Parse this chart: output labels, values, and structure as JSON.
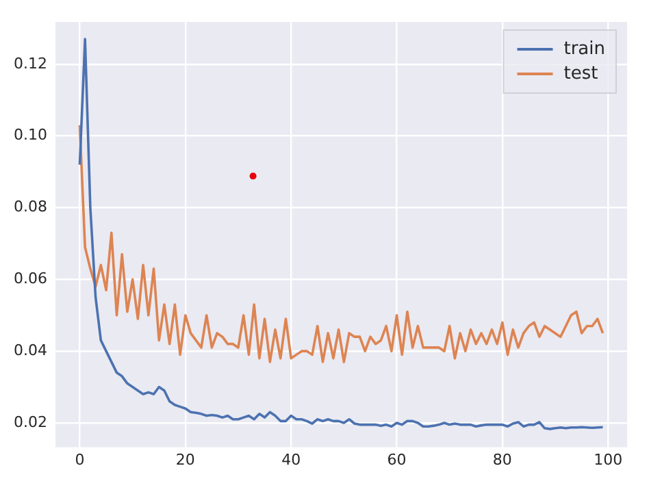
{
  "chart_data": {
    "type": "line",
    "x": [
      0,
      1,
      2,
      3,
      4,
      5,
      6,
      7,
      8,
      9,
      10,
      11,
      12,
      13,
      14,
      15,
      16,
      17,
      18,
      19,
      20,
      21,
      22,
      23,
      24,
      25,
      26,
      27,
      28,
      29,
      30,
      31,
      32,
      33,
      34,
      35,
      36,
      37,
      38,
      39,
      40,
      41,
      42,
      43,
      44,
      45,
      46,
      47,
      48,
      49,
      50,
      51,
      52,
      53,
      54,
      55,
      56,
      57,
      58,
      59,
      60,
      61,
      62,
      63,
      64,
      65,
      66,
      67,
      68,
      69,
      70,
      71,
      72,
      73,
      74,
      75,
      76,
      77,
      78,
      79,
      80,
      81,
      82,
      83,
      84,
      85,
      86,
      87,
      88,
      89,
      90,
      91,
      92,
      93,
      94,
      95,
      96,
      97,
      98,
      99
    ],
    "series": [
      {
        "name": "train",
        "color": "#4c72b0",
        "values": [
          0.092,
          0.127,
          0.08,
          0.055,
          0.043,
          0.04,
          0.037,
          0.034,
          0.033,
          0.031,
          0.03,
          0.029,
          0.028,
          0.0285,
          0.028,
          0.03,
          0.029,
          0.026,
          0.025,
          0.0245,
          0.024,
          0.023,
          0.0228,
          0.0225,
          0.022,
          0.0222,
          0.022,
          0.0215,
          0.022,
          0.021,
          0.021,
          0.0215,
          0.022,
          0.021,
          0.0225,
          0.0215,
          0.023,
          0.022,
          0.0205,
          0.0205,
          0.022,
          0.021,
          0.021,
          0.0205,
          0.0198,
          0.021,
          0.0205,
          0.021,
          0.0205,
          0.0205,
          0.02,
          0.021,
          0.0198,
          0.0195,
          0.0195,
          0.0195,
          0.0195,
          0.0192,
          0.0195,
          0.019,
          0.02,
          0.0195,
          0.0205,
          0.0205,
          0.02,
          0.019,
          0.019,
          0.0192,
          0.0195,
          0.02,
          0.0195,
          0.0198,
          0.0195,
          0.0195,
          0.0195,
          0.019,
          0.0193,
          0.0195,
          0.0195,
          0.0195,
          0.0195,
          0.019,
          0.0198,
          0.0202,
          0.019,
          0.0195,
          0.0195,
          0.0202,
          0.0185,
          0.0183,
          0.0185,
          0.0187,
          0.0185,
          0.0187,
          0.0187,
          0.0188,
          0.0187,
          0.0186,
          0.0187,
          0.0188
        ]
      },
      {
        "name": "test",
        "color": "#dd8452",
        "values": [
          0.103,
          0.069,
          0.063,
          0.058,
          0.064,
          0.057,
          0.073,
          0.05,
          0.067,
          0.051,
          0.06,
          0.049,
          0.064,
          0.05,
          0.063,
          0.043,
          0.053,
          0.042,
          0.053,
          0.039,
          0.05,
          0.045,
          0.043,
          0.041,
          0.05,
          0.041,
          0.045,
          0.044,
          0.042,
          0.042,
          0.041,
          0.05,
          0.039,
          0.053,
          0.038,
          0.049,
          0.037,
          0.046,
          0.038,
          0.049,
          0.038,
          0.039,
          0.04,
          0.04,
          0.039,
          0.047,
          0.037,
          0.045,
          0.038,
          0.046,
          0.037,
          0.045,
          0.044,
          0.044,
          0.04,
          0.044,
          0.042,
          0.043,
          0.047,
          0.04,
          0.05,
          0.039,
          0.051,
          0.041,
          0.047,
          0.041,
          0.041,
          0.041,
          0.041,
          0.04,
          0.047,
          0.038,
          0.045,
          0.04,
          0.046,
          0.042,
          0.045,
          0.042,
          0.046,
          0.042,
          0.048,
          0.039,
          0.046,
          0.041,
          0.045,
          0.047,
          0.048,
          0.044,
          0.047,
          0.046,
          0.045,
          0.044,
          0.047,
          0.05,
          0.051,
          0.045,
          0.047,
          0.047,
          0.049,
          0.045
        ]
      },
      {
        "type": "scatter",
        "marker": "circle",
        "color": "#e8000b",
        "x": [
          32.8
        ],
        "values": [
          0.0888
        ]
      }
    ],
    "xlim": [
      -4.6,
      103.6
    ],
    "ylim": [
      0.0132,
      0.1318
    ],
    "xticks": [
      0,
      20,
      40,
      60,
      80,
      100
    ],
    "yticks": [
      {
        "value": 0.02,
        "label": "0.02"
      },
      {
        "value": 0.04,
        "label": "0.04"
      },
      {
        "value": 0.06,
        "label": "0.06"
      },
      {
        "value": 0.08,
        "label": "0.08"
      },
      {
        "value": 0.1,
        "label": "0.10"
      },
      {
        "value": 0.12,
        "label": "0.12"
      }
    ],
    "grid": true,
    "legend": "top right",
    "line_style": "solid"
  }
}
